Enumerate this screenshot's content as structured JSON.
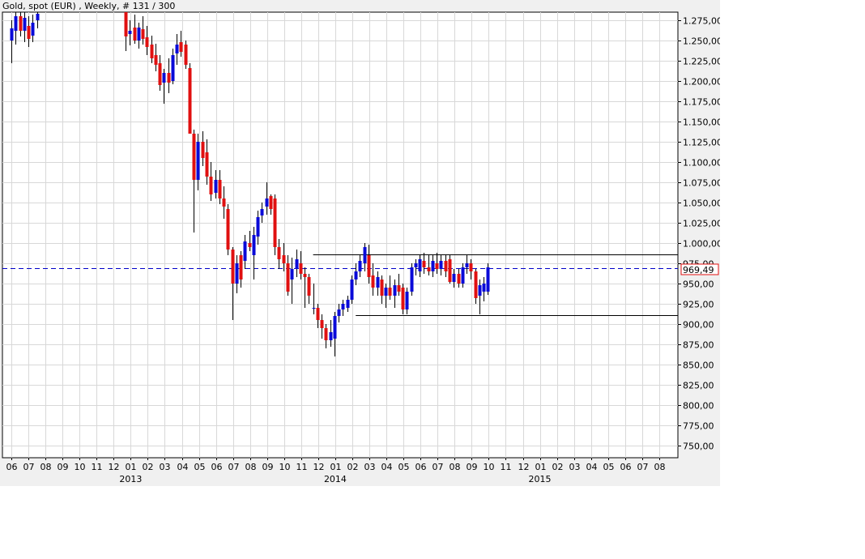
{
  "header": {
    "title": "Gold, spot (EUR) , Weekly, # 131 / 300"
  },
  "price_marker": {
    "label": "969,49",
    "value": 969.49
  },
  "colors": {
    "up": "#0a0ad8",
    "down": "#e01010",
    "wick": "#000000",
    "grid": "#d8d8d8",
    "dashed_line": "#0000c8",
    "marker_border": "#e01010"
  },
  "chart_data": {
    "type": "candlestick",
    "title": "Gold, spot (EUR) , Weekly, # 131 / 300",
    "ylim": [
      735,
      1285
    ],
    "y_ticks": [
      750,
      775,
      800,
      825,
      850,
      875,
      900,
      925,
      950,
      975,
      1000,
      1025,
      1050,
      1075,
      1100,
      1125,
      1150,
      1175,
      1200,
      1225,
      1250,
      1275
    ],
    "y_tick_labels": [
      "750,00",
      "775,00",
      "800,00",
      "825,00",
      "850,00",
      "875,00",
      "900,00",
      "925,00",
      "950,00",
      "975,00",
      "1.000,00",
      "1.025,00",
      "1.050,00",
      "1.075,00",
      "1.100,00",
      "1.125,00",
      "1.150,00",
      "1.175,00",
      "1.200,00",
      "1.225,00",
      "1.250,00",
      "1.275,00"
    ],
    "x_month_labels": [
      "06",
      "07",
      "08",
      "09",
      "10",
      "11",
      "12",
      "01",
      "02",
      "03",
      "04",
      "05",
      "06",
      "07",
      "08",
      "09",
      "10",
      "11",
      "12",
      "01",
      "02",
      "03",
      "04",
      "05",
      "06",
      "07",
      "08",
      "09",
      "10",
      "11",
      "12",
      "01",
      "02",
      "03",
      "04",
      "05",
      "06",
      "07",
      "08"
    ],
    "x_year_labels": [
      {
        "label": "2013",
        "month_index": 7
      },
      {
        "label": "2014",
        "month_index": 19
      },
      {
        "label": "2015",
        "month_index": 31
      }
    ],
    "grid": true,
    "horizontal_lines": [
      {
        "value": 986,
        "style": "solid",
        "from_month_index": 17.7
      },
      {
        "value": 911,
        "style": "solid",
        "from_month_index": 20.2
      },
      {
        "value": 969.49,
        "style": "dashed"
      }
    ],
    "candles": [
      {
        "m": 0.0,
        "o": 1250,
        "h": 1275,
        "l": 1222,
        "c": 1265
      },
      {
        "m": 0.25,
        "o": 1262,
        "h": 1285,
        "l": 1245,
        "c": 1280
      },
      {
        "m": 0.5,
        "o": 1280,
        "h": 1285,
        "l": 1255,
        "c": 1262
      },
      {
        "m": 0.75,
        "o": 1262,
        "h": 1285,
        "l": 1248,
        "c": 1278
      },
      {
        "m": 1.0,
        "o": 1268,
        "h": 1280,
        "l": 1242,
        "c": 1252
      },
      {
        "m": 1.25,
        "o": 1256,
        "h": 1282,
        "l": 1248,
        "c": 1272
      },
      {
        "m": 1.5,
        "o": 1275,
        "h": 1285,
        "l": 1265,
        "c": 1283
      },
      {
        "m": 6.7,
        "o": 1285,
        "h": 1285,
        "l": 1237,
        "c": 1255
      },
      {
        "m": 6.95,
        "o": 1258,
        "h": 1275,
        "l": 1244,
        "c": 1262
      },
      {
        "m": 7.2,
        "o": 1266,
        "h": 1282,
        "l": 1246,
        "c": 1250
      },
      {
        "m": 7.45,
        "o": 1250,
        "h": 1272,
        "l": 1240,
        "c": 1266
      },
      {
        "m": 7.7,
        "o": 1264,
        "h": 1280,
        "l": 1245,
        "c": 1252
      },
      {
        "m": 7.95,
        "o": 1254,
        "h": 1268,
        "l": 1232,
        "c": 1242
      },
      {
        "m": 8.2,
        "o": 1245,
        "h": 1256,
        "l": 1222,
        "c": 1228
      },
      {
        "m": 8.45,
        "o": 1232,
        "h": 1246,
        "l": 1212,
        "c": 1220
      },
      {
        "m": 8.7,
        "o": 1222,
        "h": 1232,
        "l": 1188,
        "c": 1195
      },
      {
        "m": 8.95,
        "o": 1198,
        "h": 1215,
        "l": 1172,
        "c": 1210
      },
      {
        "m": 9.2,
        "o": 1210,
        "h": 1228,
        "l": 1185,
        "c": 1198
      },
      {
        "m": 9.45,
        "o": 1200,
        "h": 1240,
        "l": 1196,
        "c": 1232
      },
      {
        "m": 9.7,
        "o": 1234,
        "h": 1258,
        "l": 1220,
        "c": 1245
      },
      {
        "m": 9.95,
        "o": 1248,
        "h": 1262,
        "l": 1230,
        "c": 1236
      },
      {
        "m": 10.2,
        "o": 1245,
        "h": 1250,
        "l": 1215,
        "c": 1220
      },
      {
        "m": 10.45,
        "o": 1216,
        "h": 1222,
        "l": 1140,
        "c": 1135
      },
      {
        "m": 10.7,
        "o": 1135,
        "h": 1140,
        "l": 1013,
        "c": 1078
      },
      {
        "m": 10.95,
        "o": 1078,
        "h": 1135,
        "l": 1065,
        "c": 1125
      },
      {
        "m": 11.2,
        "o": 1125,
        "h": 1138,
        "l": 1095,
        "c": 1105
      },
      {
        "m": 11.45,
        "o": 1112,
        "h": 1128,
        "l": 1072,
        "c": 1082
      },
      {
        "m": 11.7,
        "o": 1082,
        "h": 1100,
        "l": 1052,
        "c": 1060
      },
      {
        "m": 11.95,
        "o": 1062,
        "h": 1090,
        "l": 1055,
        "c": 1078
      },
      {
        "m": 12.2,
        "o": 1078,
        "h": 1090,
        "l": 1048,
        "c": 1055
      },
      {
        "m": 12.45,
        "o": 1055,
        "h": 1070,
        "l": 1030,
        "c": 1045
      },
      {
        "m": 12.7,
        "o": 1042,
        "h": 1048,
        "l": 985,
        "c": 992
      },
      {
        "m": 12.95,
        "o": 992,
        "h": 995,
        "l": 905,
        "c": 950
      },
      {
        "m": 13.2,
        "o": 950,
        "h": 985,
        "l": 938,
        "c": 975
      },
      {
        "m": 13.45,
        "o": 985,
        "h": 990,
        "l": 945,
        "c": 955
      },
      {
        "m": 13.7,
        "o": 978,
        "h": 1010,
        "l": 968,
        "c": 1002
      },
      {
        "m": 13.95,
        "o": 1000,
        "h": 1015,
        "l": 990,
        "c": 995
      },
      {
        "m": 14.2,
        "o": 985,
        "h": 1020,
        "l": 955,
        "c": 1010
      },
      {
        "m": 14.45,
        "o": 1008,
        "h": 1040,
        "l": 998,
        "c": 1032
      },
      {
        "m": 14.7,
        "o": 1034,
        "h": 1050,
        "l": 1025,
        "c": 1042
      },
      {
        "m": 14.95,
        "o": 1045,
        "h": 1075,
        "l": 1035,
        "c": 1055
      },
      {
        "m": 15.2,
        "o": 1058,
        "h": 1060,
        "l": 1035,
        "c": 1042
      },
      {
        "m": 15.45,
        "o": 1055,
        "h": 1060,
        "l": 985,
        "c": 995
      },
      {
        "m": 15.7,
        "o": 995,
        "h": 1005,
        "l": 968,
        "c": 980
      },
      {
        "m": 15.95,
        "o": 985,
        "h": 1000,
        "l": 965,
        "c": 975
      },
      {
        "m": 16.2,
        "o": 975,
        "h": 985,
        "l": 935,
        "c": 940
      },
      {
        "m": 16.45,
        "o": 955,
        "h": 982,
        "l": 925,
        "c": 968
      },
      {
        "m": 16.7,
        "o": 968,
        "h": 992,
        "l": 958,
        "c": 980
      },
      {
        "m": 16.95,
        "o": 975,
        "h": 990,
        "l": 955,
        "c": 962
      },
      {
        "m": 17.2,
        "o": 962,
        "h": 970,
        "l": 920,
        "c": 958
      },
      {
        "m": 17.45,
        "o": 958,
        "h": 962,
        "l": 925,
        "c": 935
      },
      {
        "m": 17.7,
        "o": 920,
        "h": 950,
        "l": 912,
        "c": 920
      },
      {
        "m": 17.95,
        "o": 920,
        "h": 925,
        "l": 895,
        "c": 905
      },
      {
        "m": 18.2,
        "o": 905,
        "h": 912,
        "l": 882,
        "c": 895
      },
      {
        "m": 18.45,
        "o": 895,
        "h": 900,
        "l": 870,
        "c": 880
      },
      {
        "m": 18.7,
        "o": 880,
        "h": 905,
        "l": 872,
        "c": 890
      },
      {
        "m": 18.95,
        "o": 882,
        "h": 915,
        "l": 860,
        "c": 910
      },
      {
        "m": 19.2,
        "o": 910,
        "h": 925,
        "l": 902,
        "c": 918
      },
      {
        "m": 19.45,
        "o": 918,
        "h": 930,
        "l": 910,
        "c": 925
      },
      {
        "m": 19.7,
        "o": 920,
        "h": 935,
        "l": 915,
        "c": 930
      },
      {
        "m": 19.95,
        "o": 930,
        "h": 960,
        "l": 925,
        "c": 955
      },
      {
        "m": 20.2,
        "o": 955,
        "h": 975,
        "l": 948,
        "c": 965
      },
      {
        "m": 20.45,
        "o": 965,
        "h": 985,
        "l": 958,
        "c": 978
      },
      {
        "m": 20.7,
        "o": 975,
        "h": 1000,
        "l": 965,
        "c": 995
      },
      {
        "m": 20.95,
        "o": 985,
        "h": 998,
        "l": 950,
        "c": 958
      },
      {
        "m": 21.2,
        "o": 960,
        "h": 975,
        "l": 935,
        "c": 945
      },
      {
        "m": 21.45,
        "o": 945,
        "h": 965,
        "l": 935,
        "c": 958
      },
      {
        "m": 21.7,
        "o": 955,
        "h": 960,
        "l": 925,
        "c": 935
      },
      {
        "m": 21.95,
        "o": 935,
        "h": 950,
        "l": 920,
        "c": 945
      },
      {
        "m": 22.2,
        "o": 945,
        "h": 960,
        "l": 930,
        "c": 935
      },
      {
        "m": 22.45,
        "o": 935,
        "h": 955,
        "l": 920,
        "c": 948
      },
      {
        "m": 22.7,
        "o": 948,
        "h": 962,
        "l": 935,
        "c": 940
      },
      {
        "m": 22.95,
        "o": 945,
        "h": 950,
        "l": 912,
        "c": 918
      },
      {
        "m": 23.2,
        "o": 918,
        "h": 945,
        "l": 912,
        "c": 940
      },
      {
        "m": 23.45,
        "o": 940,
        "h": 975,
        "l": 935,
        "c": 970
      },
      {
        "m": 23.7,
        "o": 970,
        "h": 980,
        "l": 960,
        "c": 975
      },
      {
        "m": 23.95,
        "o": 965,
        "h": 985,
        "l": 958,
        "c": 980
      },
      {
        "m": 24.2,
        "o": 978,
        "h": 988,
        "l": 962,
        "c": 970
      },
      {
        "m": 24.45,
        "o": 970,
        "h": 985,
        "l": 960,
        "c": 965
      },
      {
        "m": 24.7,
        "o": 965,
        "h": 985,
        "l": 958,
        "c": 978
      },
      {
        "m": 24.95,
        "o": 975,
        "h": 988,
        "l": 962,
        "c": 968
      },
      {
        "m": 25.2,
        "o": 968,
        "h": 985,
        "l": 960,
        "c": 978
      },
      {
        "m": 25.45,
        "o": 978,
        "h": 985,
        "l": 958,
        "c": 965
      },
      {
        "m": 25.7,
        "o": 980,
        "h": 985,
        "l": 950,
        "c": 952
      },
      {
        "m": 25.95,
        "o": 952,
        "h": 968,
        "l": 945,
        "c": 962
      },
      {
        "m": 26.2,
        "o": 962,
        "h": 968,
        "l": 945,
        "c": 950
      },
      {
        "m": 26.45,
        "o": 950,
        "h": 975,
        "l": 945,
        "c": 970
      },
      {
        "m": 26.7,
        "o": 970,
        "h": 985,
        "l": 962,
        "c": 975
      },
      {
        "m": 26.95,
        "o": 975,
        "h": 980,
        "l": 955,
        "c": 965
      },
      {
        "m": 27.2,
        "o": 965,
        "h": 968,
        "l": 925,
        "c": 932
      },
      {
        "m": 27.45,
        "o": 935,
        "h": 955,
        "l": 912,
        "c": 948
      },
      {
        "m": 27.7,
        "o": 940,
        "h": 958,
        "l": 928,
        "c": 950
      },
      {
        "m": 27.95,
        "o": 940,
        "h": 975,
        "l": 936,
        "c": 970
      }
    ]
  }
}
